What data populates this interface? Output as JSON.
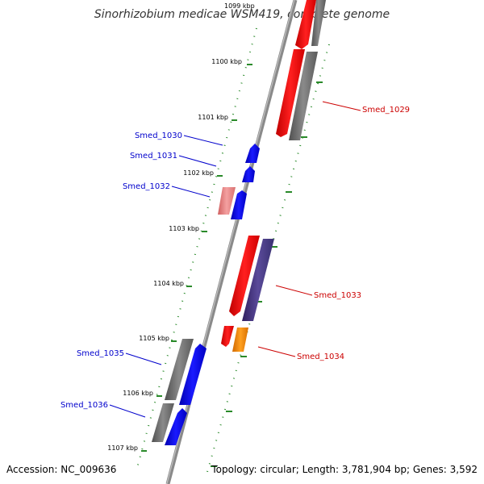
{
  "title": "Sinorhizobium medicae WSM419, complete genome",
  "accession": "Accession: NC_009636",
  "topology": "Topology: circular; Length: 3,781,904 bp; Genes: 3,592",
  "colors": {
    "backbone": "#808080",
    "ticks": "#2a8a2a",
    "forward_label": "#0000cc",
    "reverse_label": "#cc0000",
    "red": "#ff0000",
    "grey": "#707070",
    "blue": "#0000ff",
    "pink": "#f08080",
    "purple": "#4b3c8c",
    "orange": "#ff8c00"
  },
  "kbp_markers": [
    "1099 kbp",
    "1100 kbp",
    "1101 kbp",
    "1102 kbp",
    "1103 kbp",
    "1104 kbp",
    "1105 kbp",
    "1106 kbp",
    "1107 kbp"
  ],
  "gene_labels": {
    "forward": [
      "Smed_1030",
      "Smed_1031",
      "Smed_1032",
      "Smed_1035",
      "Smed_1036"
    ],
    "reverse": [
      "Smed_1029",
      "Smed_1033",
      "Smed_1034"
    ]
  }
}
